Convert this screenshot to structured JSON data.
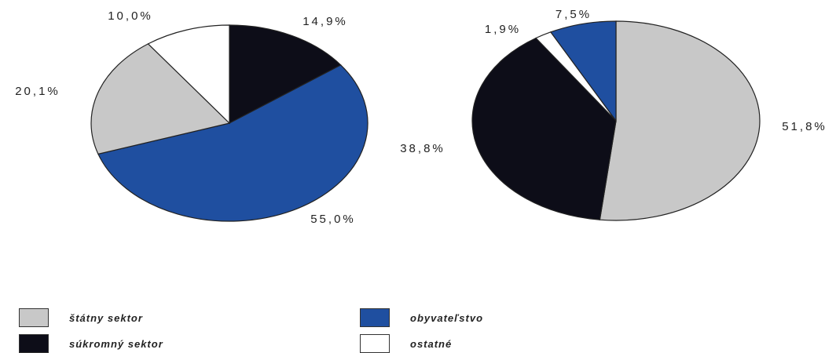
{
  "chart_data": [
    {
      "type": "pie",
      "slices": [
        {
          "legend_ref": "sukromny",
          "value": 14.9,
          "label": "14,9%"
        },
        {
          "legend_ref": "obyvatelstvo",
          "value": 55.0,
          "label": "55,0%"
        },
        {
          "legend_ref": "statny",
          "value": 20.1,
          "label": "20,1%"
        },
        {
          "legend_ref": "ostatne",
          "value": 10.0,
          "label": "10,0%"
        }
      ]
    },
    {
      "type": "pie",
      "slices": [
        {
          "legend_ref": "statny",
          "value": 51.8,
          "label": "51,8%"
        },
        {
          "legend_ref": "sukromny",
          "value": 38.8,
          "label": "38,8%"
        },
        {
          "legend_ref": "ostatne",
          "value": 1.9,
          "label": "1,9%"
        },
        {
          "legend_ref": "obyvatelstvo",
          "value": 7.5,
          "label": "7,5%"
        }
      ]
    }
  ],
  "legend": {
    "placement": "bottom",
    "items": [
      {
        "key": "statny",
        "label": "štátny sektor",
        "color": "#c8c8c8"
      },
      {
        "key": "obyvatelstvo",
        "label": "obyvateľstvo",
        "color": "#1f4fa0"
      },
      {
        "key": "sukromny",
        "label": "súkromný sektor",
        "color": "#0d0d18"
      },
      {
        "key": "ostatne",
        "label": "ostatné",
        "color": "#ffffff"
      }
    ]
  }
}
